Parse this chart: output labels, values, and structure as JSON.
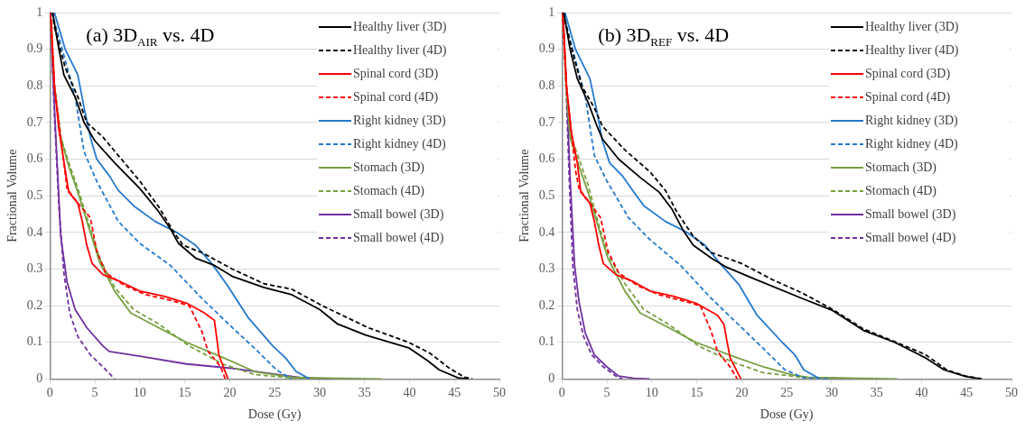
{
  "chart_data": [
    {
      "type": "line",
      "title": "(a) 3D$_{AIR}$ vs. 4D",
      "xlabel": "Dose (Gy)",
      "ylabel": "Fractional Volume",
      "xlim": [
        0,
        50
      ],
      "ylim": [
        0,
        1
      ],
      "xticks": [
        0,
        5,
        10,
        15,
        20,
        25,
        30,
        35,
        40,
        45,
        50
      ],
      "yticks": [
        0,
        0.1,
        0.2,
        0.3,
        0.4,
        0.5,
        0.6,
        0.7,
        0.8,
        0.9,
        1
      ],
      "grid": "y",
      "legend": "top right",
      "marker": "none",
      "series": [
        {
          "name": "Healthy liver (3D)",
          "color": "#000000",
          "line_style": "solid",
          "x": [
            0.3,
            1.0,
            1.55,
            2.8,
            3.8,
            5,
            7.2,
            10,
            12,
            13.4,
            14.3,
            16.2,
            18.3,
            20.3,
            23.8,
            26.9,
            30,
            32,
            35.1,
            39.9,
            42,
            43.3,
            45.4,
            46.6
          ],
          "values": [
            1,
            0.9,
            0.83,
            0.77,
            0.7,
            0.65,
            0.59,
            0.52,
            0.46,
            0.41,
            0.37,
            0.33,
            0.31,
            0.28,
            0.25,
            0.23,
            0.19,
            0.15,
            0.12,
            0.085,
            0.05,
            0.025,
            0.003,
            0
          ]
        },
        {
          "name": "Healthy liver (4D)",
          "color": "#000000",
          "line_style": "dashed",
          "x": [
            0.3,
            0.5,
            1.7,
            3.1,
            4.1,
            5.9,
            10,
            12.1,
            13.8,
            14.8,
            16.9,
            20.3,
            23.8,
            26.9,
            30.3,
            35.4,
            39.9,
            42.3,
            44.4,
            46.1,
            47
          ],
          "values": [
            1,
            0.96,
            0.85,
            0.77,
            0.7,
            0.66,
            0.54,
            0.47,
            0.4,
            0.365,
            0.345,
            0.3,
            0.26,
            0.245,
            0.2,
            0.14,
            0.1,
            0.07,
            0.03,
            0.005,
            0
          ]
        },
        {
          "name": "Spinal cord (3D)",
          "color": "#ff0000",
          "line_style": "solid",
          "x": [
            0,
            0.17,
            0.5,
            1,
            1.7,
            2.1,
            3.1,
            3.6,
            4.1,
            4.7,
            5.9,
            7.9,
            10,
            12.8,
            15.2,
            17.2,
            18.3,
            18.8,
            19.8
          ],
          "values": [
            1,
            0.97,
            0.8,
            0.68,
            0.57,
            0.51,
            0.48,
            0.43,
            0.365,
            0.315,
            0.285,
            0.265,
            0.24,
            0.225,
            0.207,
            0.18,
            0.16,
            0.065,
            0
          ]
        },
        {
          "name": "Spinal cord (4D)",
          "color": "#ff0000",
          "line_style": "dashed",
          "x": [
            0,
            0.1,
            0.5,
            1.55,
            1.9,
            3.1,
            4.5,
            5.2,
            6.2,
            8.3,
            10.7,
            13.4,
            15.5,
            16.9,
            17.6,
            19,
            19.5
          ],
          "values": [
            1,
            0.97,
            0.8,
            0.59,
            0.52,
            0.48,
            0.44,
            0.35,
            0.29,
            0.255,
            0.23,
            0.215,
            0.2,
            0.13,
            0.075,
            0.033,
            0
          ]
        },
        {
          "name": "Right kidney (3D)",
          "color": "#2479cf",
          "line_style": "solid",
          "x": [
            0,
            0.5,
            1.7,
            3.1,
            3.8,
            4.5,
            5.2,
            6.6,
            7.6,
            9.3,
            11.7,
            14.1,
            16.2,
            18,
            19.7,
            22.1,
            24.8,
            26.2,
            27.4,
            28.9
          ],
          "values": [
            1,
            1,
            0.9,
            0.83,
            0.74,
            0.66,
            0.6,
            0.555,
            0.515,
            0.473,
            0.43,
            0.4,
            0.365,
            0.315,
            0.257,
            0.166,
            0.09,
            0.058,
            0.02,
            0
          ]
        },
        {
          "name": "Right kidney (4D)",
          "color": "#2479cf",
          "line_style": "dashed",
          "x": [
            0,
            0.34,
            1.7,
            2.8,
            3.8,
            5.2,
            7.6,
            10,
            13.4,
            16.9,
            20.3,
            22.8,
            25.2,
            26.9
          ],
          "values": [
            1,
            0.99,
            0.87,
            0.77,
            0.62,
            0.54,
            0.43,
            0.37,
            0.31,
            0.22,
            0.14,
            0.083,
            0.025,
            0
          ]
        },
        {
          "name": "Stomach (3D)",
          "color": "#77a040",
          "line_style": "solid",
          "x": [
            0,
            0.07,
            0.5,
            1.2,
            2.1,
            3.1,
            4.5,
            5.5,
            7.2,
            9,
            11.7,
            15.2,
            19.3,
            22.8,
            27.2,
            32,
            36.9
          ],
          "values": [
            1,
            1,
            0.8,
            0.66,
            0.58,
            0.51,
            0.4,
            0.32,
            0.24,
            0.18,
            0.145,
            0.1,
            0.058,
            0.02,
            0.004,
            0.002,
            0
          ]
        },
        {
          "name": "Stomach (4D)",
          "color": "#77a040",
          "line_style": "dashed",
          "x": [
            0,
            0.07,
            0.5,
            1.2,
            2.1,
            3.1,
            4.5,
            5.5,
            7.2,
            9.3,
            12.1,
            15.5,
            19.3,
            22.8,
            27.2,
            33
          ],
          "values": [
            1,
            1,
            0.8,
            0.66,
            0.59,
            0.52,
            0.41,
            0.33,
            0.25,
            0.19,
            0.15,
            0.09,
            0.04,
            0.012,
            0.002,
            0
          ]
        },
        {
          "name": "Small bowel (3D)",
          "color": "#7030a0",
          "line_style": "solid",
          "x": [
            0,
            0.07,
            0.7,
            1.2,
            1.9,
            2.8,
            4.1,
            5.9,
            6.6,
            10,
            15.2,
            20.3,
            25.5,
            27.9,
            31.3
          ],
          "values": [
            1,
            1,
            0.64,
            0.39,
            0.265,
            0.19,
            0.14,
            0.09,
            0.075,
            0.062,
            0.041,
            0.029,
            0.012,
            0.004,
            0
          ]
        },
        {
          "name": "Small bowel (4D)",
          "color": "#7030a0",
          "line_style": "dashed",
          "x": [
            0,
            0.07,
            0.5,
            1,
            1.55,
            2.2,
            3.1,
            4.5,
            5.9,
            7.2
          ],
          "values": [
            1,
            1,
            0.72,
            0.47,
            0.29,
            0.18,
            0.116,
            0.066,
            0.033,
            0
          ]
        }
      ]
    },
    {
      "type": "line",
      "title": "(b) 3D$_{REF}$ vs. 4D",
      "xlabel": "Dose (Gy)",
      "ylabel": "Fractional Volume",
      "xlim": [
        0,
        50
      ],
      "ylim": [
        0,
        1
      ],
      "xticks": [
        0,
        5,
        10,
        15,
        20,
        25,
        30,
        35,
        40,
        45,
        50
      ],
      "yticks": [
        0,
        0.1,
        0.2,
        0.3,
        0.4,
        0.5,
        0.6,
        0.7,
        0.8,
        0.9,
        1
      ],
      "grid": "y",
      "legend": "top right",
      "marker": "none",
      "series": [
        {
          "name": "Healthy liver (3D)",
          "color": "#000000",
          "line_style": "solid",
          "x": [
            0.2,
            0.9,
            1.7,
            2.9,
            3.9,
            4.5,
            6.3,
            8.7,
            10.8,
            12.2,
            13.5,
            14.6,
            16.6,
            18.3,
            21.7,
            26.7,
            30.1,
            33.5,
            37,
            40.4,
            42.5,
            44.9,
            46.6
          ],
          "values": [
            1,
            0.9,
            0.82,
            0.755,
            0.69,
            0.655,
            0.6,
            0.55,
            0.51,
            0.465,
            0.405,
            0.365,
            0.33,
            0.305,
            0.27,
            0.22,
            0.187,
            0.133,
            0.1,
            0.058,
            0.025,
            0.007,
            0
          ]
        },
        {
          "name": "Healthy liver (4D)",
          "color": "#000000",
          "line_style": "dashed",
          "x": [
            0.2,
            0.34,
            1.2,
            2.2,
            3.6,
            4.5,
            7,
            9.8,
            11.5,
            12.8,
            14.6,
            16.6,
            20,
            23.5,
            26.7,
            30.1,
            33.5,
            37,
            40.4,
            42.8,
            44.9,
            46.9
          ],
          "values": [
            1,
            0.98,
            0.89,
            0.8,
            0.74,
            0.69,
            0.625,
            0.565,
            0.515,
            0.455,
            0.39,
            0.345,
            0.315,
            0.27,
            0.235,
            0.19,
            0.137,
            0.102,
            0.067,
            0.025,
            0.008,
            0
          ]
        },
        {
          "name": "Spinal cord (3D)",
          "color": "#ff0000",
          "line_style": "solid",
          "x": [
            0,
            0.17,
            0.5,
            1,
            1.7,
            2.1,
            3.1,
            3.6,
            4.1,
            4.6,
            6,
            8,
            9.8,
            12.5,
            14.9,
            17.3,
            18,
            18.7,
            19.9
          ],
          "values": [
            1,
            0.97,
            0.8,
            0.68,
            0.59,
            0.51,
            0.48,
            0.43,
            0.365,
            0.315,
            0.285,
            0.265,
            0.24,
            0.225,
            0.207,
            0.174,
            0.15,
            0.058,
            0
          ]
        },
        {
          "name": "Spinal cord (4D)",
          "color": "#ff0000",
          "line_style": "dashed",
          "x": [
            0,
            0.1,
            0.5,
            1.5,
            1.9,
            3.1,
            4.3,
            5.1,
            6.3,
            8.4,
            10.8,
            13.2,
            15.4,
            16.6,
            17.3,
            18.7,
            19.5
          ],
          "values": [
            1,
            0.97,
            0.8,
            0.57,
            0.52,
            0.48,
            0.44,
            0.35,
            0.29,
            0.255,
            0.23,
            0.215,
            0.2,
            0.13,
            0.075,
            0.033,
            0
          ]
        },
        {
          "name": "Right kidney (3D)",
          "color": "#2479cf",
          "line_style": "solid",
          "x": [
            0,
            0.34,
            1.5,
            3.1,
            3.8,
            4.5,
            5.3,
            6.7,
            7.7,
            9.1,
            11.5,
            13.9,
            15.9,
            17.6,
            19.7,
            21.7,
            24.5,
            25.9,
            26.9,
            28.7
          ],
          "values": [
            1,
            1,
            0.9,
            0.82,
            0.74,
            0.65,
            0.59,
            0.555,
            0.52,
            0.473,
            0.43,
            0.4,
            0.365,
            0.315,
            0.257,
            0.174,
            0.1,
            0.066,
            0.025,
            0
          ]
        },
        {
          "name": "Right kidney (4D)",
          "color": "#2479cf",
          "line_style": "dashed",
          "x": [
            0,
            0.2,
            1.5,
            2.6,
            3.6,
            5,
            7.4,
            9.8,
            13.2,
            16.6,
            20,
            22.4,
            24.8,
            26.9,
            29.9
          ],
          "values": [
            1,
            0.99,
            0.87,
            0.77,
            0.61,
            0.54,
            0.44,
            0.38,
            0.31,
            0.22,
            0.14,
            0.083,
            0.025,
            0.003,
            0
          ]
        },
        {
          "name": "Stomach (3D)",
          "color": "#77a040",
          "line_style": "solid",
          "x": [
            0,
            0.1,
            0.45,
            0.9,
            1.9,
            2.9,
            4.1,
            5.1,
            7,
            8.7,
            11.5,
            14.9,
            19,
            22.4,
            25.5,
            27.6,
            37.3
          ],
          "values": [
            1,
            1,
            0.8,
            0.66,
            0.58,
            0.51,
            0.41,
            0.33,
            0.24,
            0.18,
            0.145,
            0.1,
            0.062,
            0.033,
            0.012,
            0.004,
            0
          ]
        },
        {
          "name": "Stomach (4D)",
          "color": "#77a040",
          "line_style": "dashed",
          "x": [
            0,
            0.1,
            0.45,
            0.9,
            1.9,
            2.9,
            4.1,
            5.1,
            7,
            9.1,
            11.8,
            15.2,
            19,
            22.4,
            26.9,
            35.2
          ],
          "values": [
            1,
            1,
            0.8,
            0.67,
            0.6,
            0.53,
            0.42,
            0.34,
            0.26,
            0.19,
            0.15,
            0.09,
            0.046,
            0.017,
            0.004,
            0
          ]
        },
        {
          "name": "Small bowel (3D)",
          "color": "#7030a0",
          "line_style": "solid",
          "x": [
            0,
            0.1,
            0.5,
            0.9,
            1.4,
            1.9,
            2.6,
            3.6,
            5,
            6.3,
            8,
            9.8
          ],
          "values": [
            1,
            1,
            0.8,
            0.55,
            0.31,
            0.21,
            0.125,
            0.066,
            0.033,
            0.008,
            0.002,
            0
          ]
        },
        {
          "name": "Small bowel (4D)",
          "color": "#7030a0",
          "line_style": "dashed",
          "x": [
            0,
            0.1,
            0.45,
            0.8,
            1.2,
            1.7,
            2.4,
            3.3,
            4.6,
            6,
            6.7
          ],
          "values": [
            1,
            1,
            0.8,
            0.55,
            0.31,
            0.19,
            0.116,
            0.066,
            0.033,
            0.008,
            0
          ]
        }
      ]
    }
  ]
}
